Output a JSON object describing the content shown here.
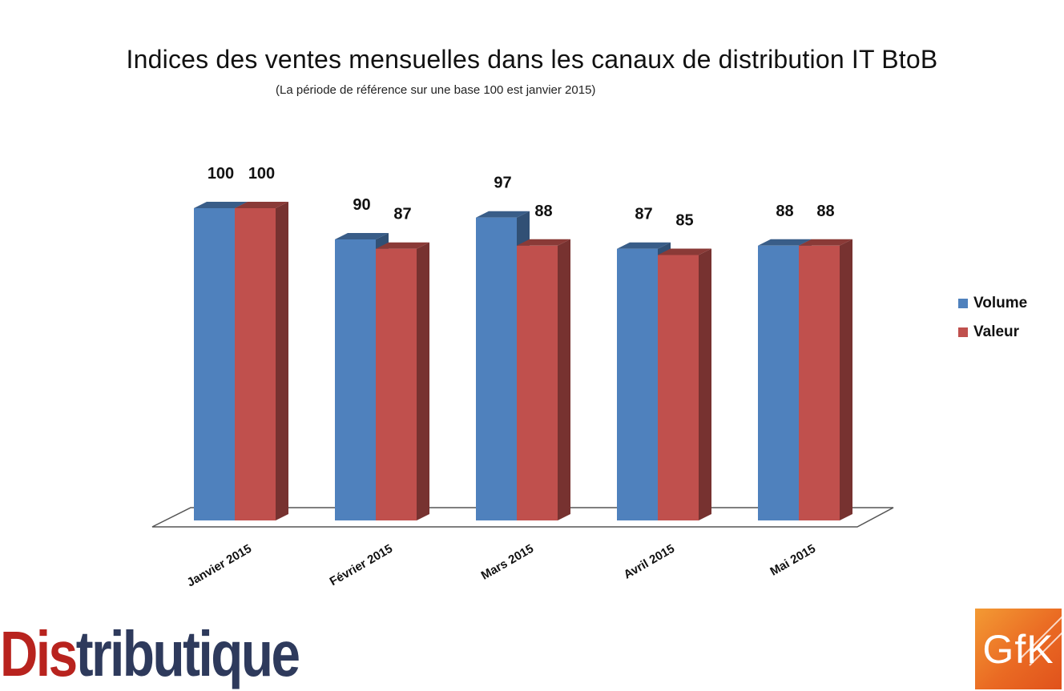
{
  "chart_data": {
    "type": "bar",
    "title": "Indices des ventes mensuelles dans les canaux de distribution IT BtoB",
    "subtitle": "(La période de référence sur une base 100 est janvier 2015)",
    "categories": [
      "Janvier 2015",
      "Février 2015",
      "Mars 2015",
      "Avril 2015",
      "Mai 2015"
    ],
    "series": [
      {
        "name": "Volume",
        "color": "#4f81bd",
        "values": [
          100,
          90,
          97,
          87,
          88
        ]
      },
      {
        "name": "Valeur",
        "color": "#c0504d",
        "values": [
          100,
          87,
          88,
          85,
          88
        ]
      }
    ],
    "ylim": [
      0,
      100
    ],
    "grid": false,
    "legend": "right",
    "data_labels": true,
    "style": "3d-clustered-column"
  },
  "logos": {
    "publisher": {
      "part1": "Dis",
      "part2": "tributique"
    },
    "partner": "GfK"
  }
}
